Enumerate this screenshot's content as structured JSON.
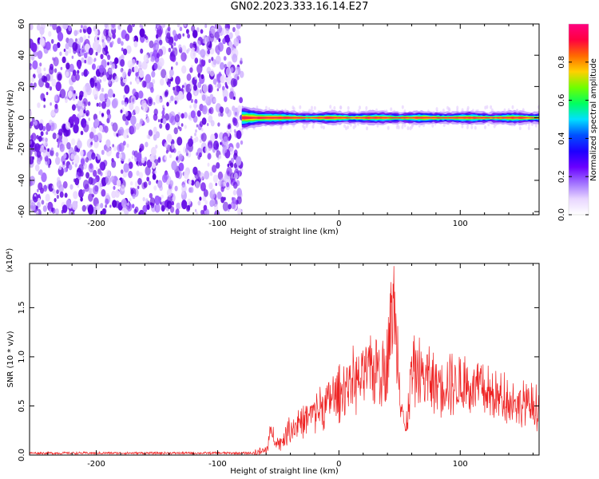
{
  "figure": {
    "title": "GN02.2023.333.16.14.E27"
  },
  "colors": {
    "snr_line": "#ee2222",
    "spectrogram_noise": "#7a22ee",
    "spectrogram_ridge": "#ff2244",
    "colormap": [
      "#ffffff",
      "#e8d6ff",
      "#a070ff",
      "#6a00ff",
      "#1d00ff",
      "#0050ff",
      "#00e0ff",
      "#00ff60",
      "#70ff00",
      "#ffd000",
      "#ff6a00",
      "#ff0040",
      "#ff0080"
    ]
  },
  "chart_data": [
    {
      "type": "heatmap",
      "xlabel": "Height of straight line (km)",
      "ylabel": "Frequency (Hz)",
      "xlim": [
        -255,
        165
      ],
      "ylim": [
        -62,
        60
      ],
      "xticks": [
        -200,
        -100,
        0,
        100
      ],
      "yticks": [
        -60,
        -40,
        -20,
        0,
        20,
        40,
        60
      ],
      "signal_onset_km": -80,
      "ridge_frequency_hz": 0,
      "colorbar": {
        "label": "Normalized spectral amplitude",
        "range": [
          0.0,
          1.0
        ],
        "ticks": [
          0.0,
          0.2,
          0.4,
          0.6,
          0.8
        ]
      }
    },
    {
      "type": "line",
      "xlabel": "Height of straight line (km)",
      "ylabel": "SNR (10 * v/v)",
      "yscale_note": "(x10⁴)",
      "xlim": [
        -255,
        165
      ],
      "ylim": [
        0,
        1.95
      ],
      "xticks": [
        -200,
        -100,
        0,
        100
      ],
      "yticks": [
        0.0,
        0.5,
        1.0,
        1.5
      ],
      "series": [
        {
          "x": [
            -255,
            -200,
            -100,
            -70,
            -60,
            -55,
            -50,
            -40,
            -30,
            -20,
            -10,
            0,
            10,
            20,
            30,
            40,
            45,
            50,
            55,
            60,
            80,
            100,
            120,
            140,
            165
          ],
          "y": [
            0.02,
            0.02,
            0.02,
            0.02,
            0.05,
            0.3,
            0.12,
            0.3,
            0.4,
            0.5,
            0.6,
            0.72,
            0.85,
            0.9,
            1.0,
            1.05,
            1.9,
            0.95,
            0.2,
            1.0,
            0.85,
            0.82,
            0.72,
            0.65,
            0.55
          ]
        }
      ]
    }
  ]
}
